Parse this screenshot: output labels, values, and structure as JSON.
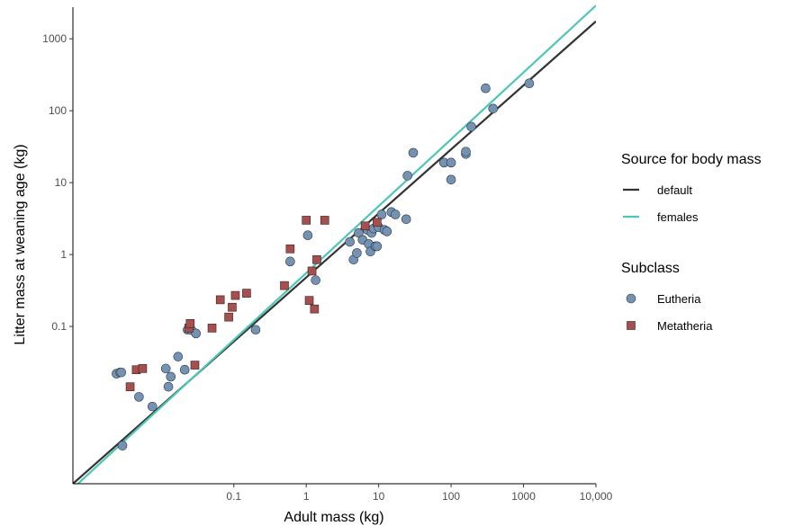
{
  "chart_data": {
    "type": "scatter",
    "xlabel": "Adult mass (kg)",
    "ylabel": "Litter mass at weaning age (kg)",
    "x_scale": "log",
    "y_scale": "log",
    "xlim": [
      0.0006,
      10000
    ],
    "ylim": [
      0.00065,
      3000
    ],
    "x_ticks": [
      {
        "value": 0.1,
        "label": "0.1"
      },
      {
        "value": 1,
        "label": "1"
      },
      {
        "value": 10,
        "label": "10"
      },
      {
        "value": 100,
        "label": "100"
      },
      {
        "value": 1000,
        "label": "1000"
      },
      {
        "value": 10000,
        "label": "10,000"
      }
    ],
    "y_ticks": [
      {
        "value": 0.1,
        "label": "0.1"
      },
      {
        "value": 1,
        "label": "1"
      },
      {
        "value": 10,
        "label": "10"
      },
      {
        "value": 100,
        "label": "100"
      },
      {
        "value": 1000,
        "label": "1000"
      }
    ],
    "grid": false,
    "legend_position": "right",
    "legends": [
      {
        "title": "Source for body mass",
        "kind": "line",
        "items": [
          {
            "label": "default",
            "color": "#333333"
          },
          {
            "label": "females",
            "color": "#4ec6b5"
          }
        ]
      },
      {
        "title": "Subclass",
        "kind": "point",
        "items": [
          {
            "label": "Eutheria",
            "color": "#7592b3",
            "shape": "circle"
          },
          {
            "label": "Metatheria",
            "color": "#a5504f",
            "shape": "square"
          }
        ]
      }
    ],
    "lines": [
      {
        "name": "default",
        "color": "#333333",
        "x": [
          0.0006,
          10000
        ],
        "y": [
          0.00065,
          1750
        ]
      },
      {
        "name": "females",
        "color": "#4ec6b5",
        "x": [
          0.0006,
          10000
        ],
        "y": [
          0.00056,
          2900
        ]
      }
    ],
    "series": [
      {
        "name": "Eutheria",
        "color": "#7592b3",
        "shape": "circle",
        "points": [
          [
            0.0024,
            0.022
          ],
          [
            0.0027,
            0.023
          ],
          [
            0.0028,
            0.023
          ],
          [
            0.0029,
            0.0022
          ],
          [
            0.0049,
            0.0105
          ],
          [
            0.0075,
            0.0077
          ],
          [
            0.0115,
            0.026
          ],
          [
            0.0125,
            0.0145
          ],
          [
            0.0135,
            0.02
          ],
          [
            0.017,
            0.038
          ],
          [
            0.021,
            0.025
          ],
          [
            0.023,
            0.09
          ],
          [
            0.026,
            0.089
          ],
          [
            0.03,
            0.08
          ],
          [
            0.2,
            0.09
          ],
          [
            0.6,
            0.8
          ],
          [
            1.05,
            1.85
          ],
          [
            1.35,
            0.44
          ],
          [
            4.0,
            1.5
          ],
          [
            4.5,
            0.85
          ],
          [
            5.0,
            1.05
          ],
          [
            5.3,
            2.0
          ],
          [
            6.0,
            1.6
          ],
          [
            7.0,
            2.2
          ],
          [
            7.3,
            1.4
          ],
          [
            7.7,
            1.1
          ],
          [
            8.0,
            2.0
          ],
          [
            8.5,
            2.3
          ],
          [
            9.0,
            1.3
          ],
          [
            9.5,
            1.3
          ],
          [
            10.0,
            2.4
          ],
          [
            11.0,
            3.6
          ],
          [
            12.0,
            2.2
          ],
          [
            13.0,
            2.1
          ],
          [
            15.0,
            3.9
          ],
          [
            17.0,
            3.6
          ],
          [
            24.0,
            3.1
          ],
          [
            25.0,
            12.5
          ],
          [
            30.0,
            26.0
          ],
          [
            80.0,
            19.0
          ],
          [
            100.0,
            19.0
          ],
          [
            100.0,
            11.0
          ],
          [
            160.0,
            25.0
          ],
          [
            160.0,
            27.0
          ],
          [
            190.0,
            60.0
          ],
          [
            300.0,
            205.0
          ],
          [
            380.0,
            107.0
          ],
          [
            1200.0,
            240.0
          ]
        ]
      },
      {
        "name": "Metatheria",
        "color": "#a5504f",
        "shape": "square",
        "points": [
          [
            0.0037,
            0.0145
          ],
          [
            0.0045,
            0.025
          ],
          [
            0.0055,
            0.026
          ],
          [
            0.024,
            0.095
          ],
          [
            0.025,
            0.11
          ],
          [
            0.029,
            0.029
          ],
          [
            0.05,
            0.095
          ],
          [
            0.065,
            0.235
          ],
          [
            0.085,
            0.135
          ],
          [
            0.095,
            0.185
          ],
          [
            0.105,
            0.27
          ],
          [
            0.15,
            0.29
          ],
          [
            0.5,
            0.37
          ],
          [
            0.6,
            1.2
          ],
          [
            1.0,
            3.0
          ],
          [
            1.1,
            0.23
          ],
          [
            1.2,
            0.59
          ],
          [
            1.3,
            0.175
          ],
          [
            1.4,
            0.85
          ],
          [
            1.8,
            3.0
          ],
          [
            6.5,
            2.5
          ],
          [
            9.5,
            2.8
          ]
        ]
      }
    ]
  }
}
